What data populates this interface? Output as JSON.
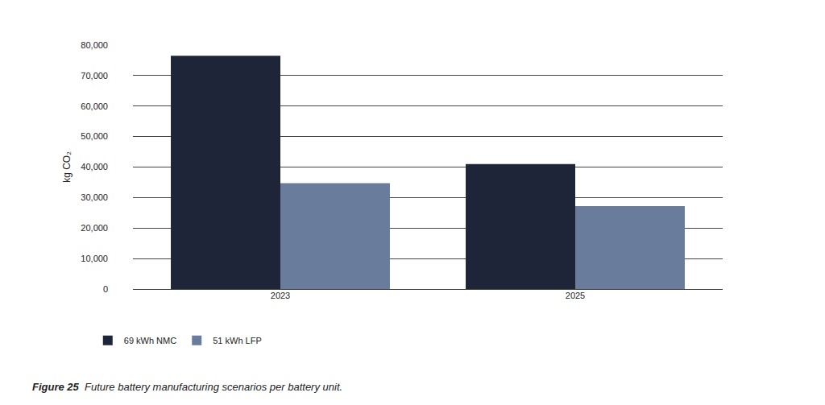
{
  "chart_data": {
    "type": "bar",
    "title": "Figure 25",
    "subtitle": "Future battery manufacturing scenarios per battery unit.",
    "y_label": "kg CO₂",
    "categories": [
      "2023",
      "2025"
    ],
    "series": [
      {
        "name": "69 kWh NMC",
        "color": "#1f2538",
        "values": [
          76500,
          41000
        ]
      },
      {
        "name": "51 kWh LFP",
        "color": "#6a7c9c",
        "values": [
          34700,
          27200
        ]
      }
    ],
    "ylim": [
      0,
      80000
    ],
    "yticks": [
      0,
      {
        "value": 10000,
        "label": "10,000"
      },
      {
        "value": 20000,
        "label": "20,000"
      },
      {
        "value": 30000,
        "label": "30,000"
      },
      {
        "value": 40000,
        "label": "40,000"
      },
      {
        "value": 50000,
        "label": "50,000"
      },
      {
        "value": 60000,
        "label": "60,000"
      },
      {
        "value": 70000,
        "label": "70,000"
      },
      {
        "value": 80000,
        "label": "80,000"
      }
    ],
    "grid": true,
    "legend": "bottom left"
  }
}
